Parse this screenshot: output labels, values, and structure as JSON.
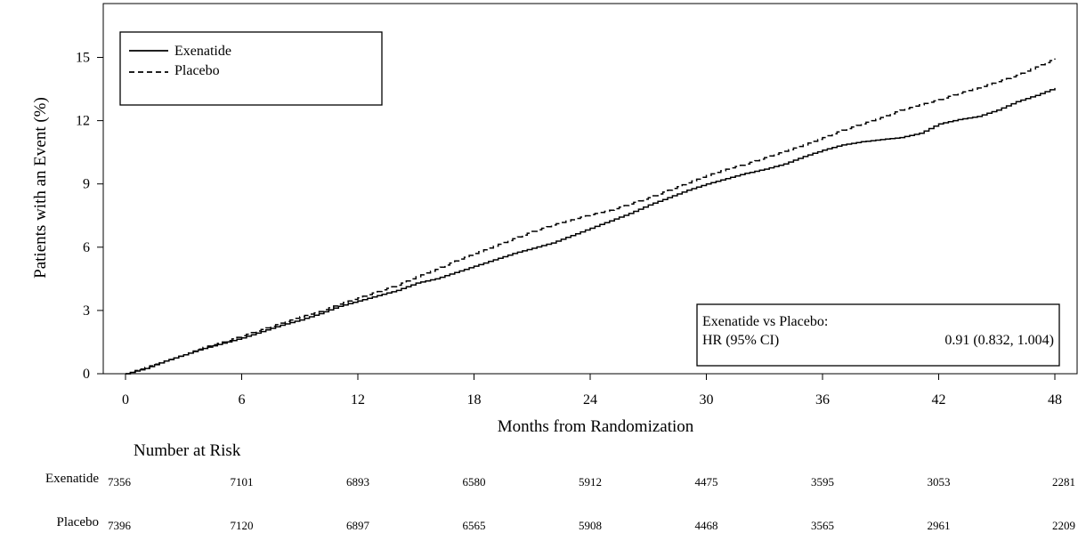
{
  "chart_data": {
    "type": "line",
    "title": "",
    "xlabel": "Months from Randomization",
    "ylabel": "Patients with an Event (%)",
    "xlim": [
      0,
      48
    ],
    "ylim": [
      0,
      16
    ],
    "x_ticks": [
      0,
      6,
      12,
      18,
      24,
      30,
      36,
      42,
      48
    ],
    "x_tick_labels": [
      "0",
      "6",
      "12",
      "18",
      "24",
      "30",
      "36",
      "42",
      "48"
    ],
    "y_ticks": [
      0,
      3,
      6,
      9,
      12,
      15
    ],
    "y_tick_labels": [
      "0",
      "3",
      "6",
      "9",
      "12",
      "15"
    ],
    "grid": false,
    "legend_position": "top-left",
    "series": [
      {
        "name": "Exenatide",
        "line_style": "solid",
        "color": "#000000",
        "x": [
          0,
          1,
          2,
          3,
          4,
          5,
          6,
          7,
          8,
          9,
          10,
          11,
          12,
          13,
          14,
          15,
          16,
          17,
          18,
          19,
          20,
          21,
          22,
          23,
          24,
          25,
          26,
          27,
          28,
          29,
          30,
          31,
          32,
          33,
          34,
          35,
          36,
          37,
          38,
          39,
          40,
          41,
          42,
          43,
          44,
          45,
          46,
          47,
          48
        ],
        "y": [
          0,
          0.25,
          0.6,
          0.9,
          1.2,
          1.45,
          1.7,
          2.0,
          2.3,
          2.55,
          2.85,
          3.2,
          3.45,
          3.7,
          3.95,
          4.3,
          4.5,
          4.8,
          5.1,
          5.4,
          5.7,
          5.95,
          6.2,
          6.55,
          6.9,
          7.25,
          7.6,
          8.0,
          8.35,
          8.7,
          9.0,
          9.25,
          9.5,
          9.7,
          9.95,
          10.3,
          10.6,
          10.85,
          11.0,
          11.1,
          11.2,
          11.4,
          11.85,
          12.05,
          12.2,
          12.5,
          12.9,
          13.2,
          13.55
        ]
      },
      {
        "name": "Placebo",
        "line_style": "dashed",
        "color": "#000000",
        "x": [
          0,
          1,
          2,
          3,
          4,
          5,
          6,
          7,
          8,
          9,
          10,
          11,
          12,
          13,
          14,
          15,
          16,
          17,
          18,
          19,
          20,
          21,
          22,
          23,
          24,
          25,
          26,
          27,
          28,
          29,
          30,
          31,
          32,
          33,
          34,
          35,
          36,
          37,
          38,
          39,
          40,
          41,
          42,
          43,
          44,
          45,
          46,
          47,
          48
        ],
        "y": [
          0,
          0.3,
          0.6,
          0.9,
          1.25,
          1.5,
          1.8,
          2.1,
          2.4,
          2.7,
          2.95,
          3.3,
          3.6,
          3.9,
          4.2,
          4.6,
          4.95,
          5.35,
          5.7,
          6.05,
          6.4,
          6.75,
          7.05,
          7.3,
          7.55,
          7.75,
          8.05,
          8.35,
          8.7,
          9.05,
          9.4,
          9.7,
          9.95,
          10.25,
          10.55,
          10.85,
          11.2,
          11.55,
          11.85,
          12.15,
          12.5,
          12.75,
          13.0,
          13.3,
          13.55,
          13.85,
          14.15,
          14.55,
          14.95
        ]
      }
    ],
    "legend": [
      {
        "name": "Exenatide",
        "line_style": "solid"
      },
      {
        "name": "Placebo",
        "line_style": "dashed"
      }
    ],
    "annotation": {
      "title": "Exenatide vs Placebo:",
      "label": "HR (95% CI)",
      "value": "0.91 (0.832, 1.004)"
    },
    "risk_table": {
      "title": "Number at Risk",
      "rows": [
        {
          "label": "Exenatide",
          "values": [
            "7356",
            "7101",
            "6893",
            "6580",
            "5912",
            "4475",
            "3595",
            "3053",
            "2281"
          ]
        },
        {
          "label": "Placebo",
          "values": [
            "7396",
            "7120",
            "6897",
            "6565",
            "5908",
            "4468",
            "3565",
            "2961",
            "2209"
          ]
        }
      ]
    }
  }
}
